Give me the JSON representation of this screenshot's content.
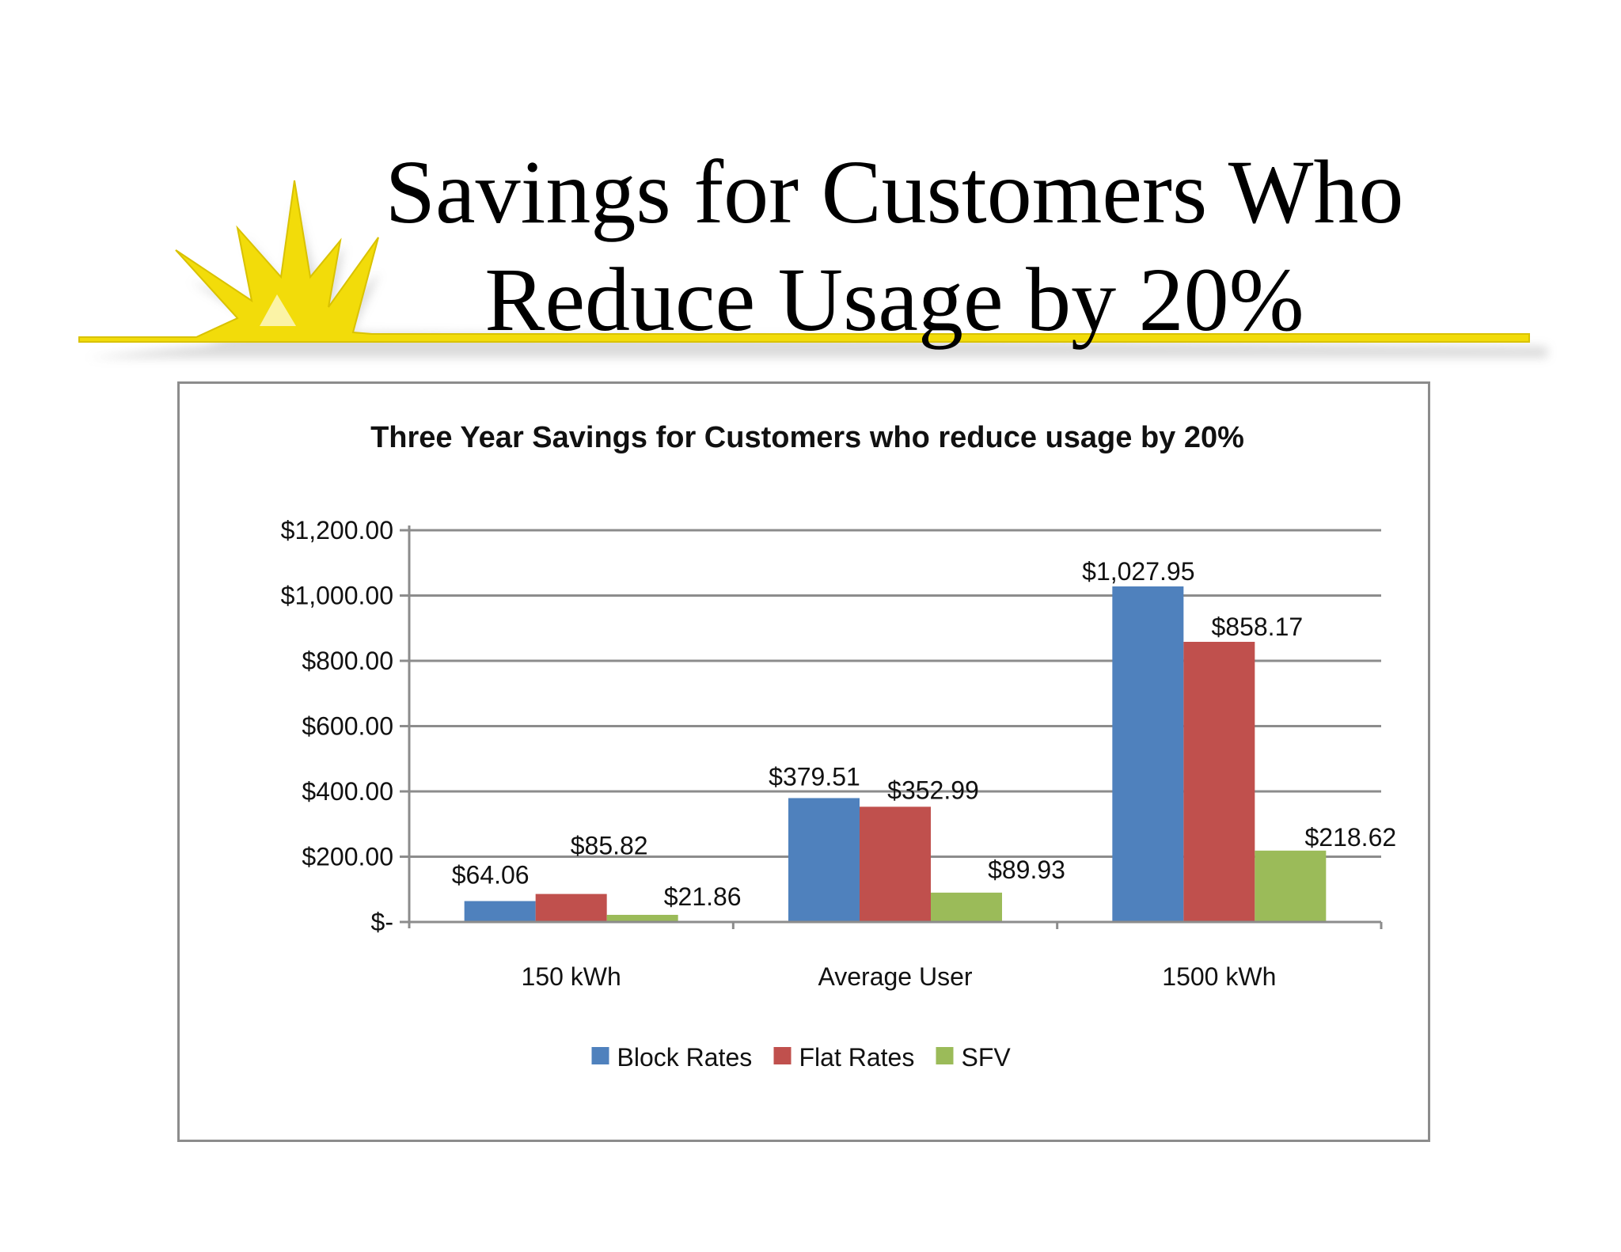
{
  "slide": {
    "title_line1": "Savings for Customers Who",
    "title_line2": "Reduce Usage by 20%",
    "accent_color": "#f2dc0a"
  },
  "chart_data": {
    "type": "bar",
    "title": "Three Year Savings for Customers who reduce usage by 20%",
    "categories": [
      "150 kWh",
      "Average User",
      "1500 kWh"
    ],
    "series": [
      {
        "name": "Block Rates",
        "color": "#4f81bd",
        "values": [
          64.06,
          379.51,
          1027.95
        ],
        "labels": [
          "$64.06",
          "$379.51",
          "$1,027.95"
        ]
      },
      {
        "name": "Flat Rates",
        "color": "#c0504d",
        "values": [
          85.82,
          352.99,
          858.17
        ],
        "labels": [
          "$85.82",
          "$352.99",
          "$858.17"
        ]
      },
      {
        "name": "SFV",
        "color": "#9bbb59",
        "values": [
          21.86,
          89.93,
          218.62
        ],
        "labels": [
          "$21.86",
          "$89.93",
          "$218.62"
        ]
      }
    ],
    "ylim": [
      0,
      1200
    ],
    "yticks": [
      0,
      200,
      400,
      600,
      800,
      1000,
      1200
    ],
    "ytick_labels": [
      "$-",
      "$200.00",
      "$400.00",
      "$600.00",
      "$800.00",
      "$1,000.00",
      "$1,200.00"
    ],
    "grid": true,
    "legend_position": "bottom",
    "xlabel": "",
    "ylabel": ""
  }
}
